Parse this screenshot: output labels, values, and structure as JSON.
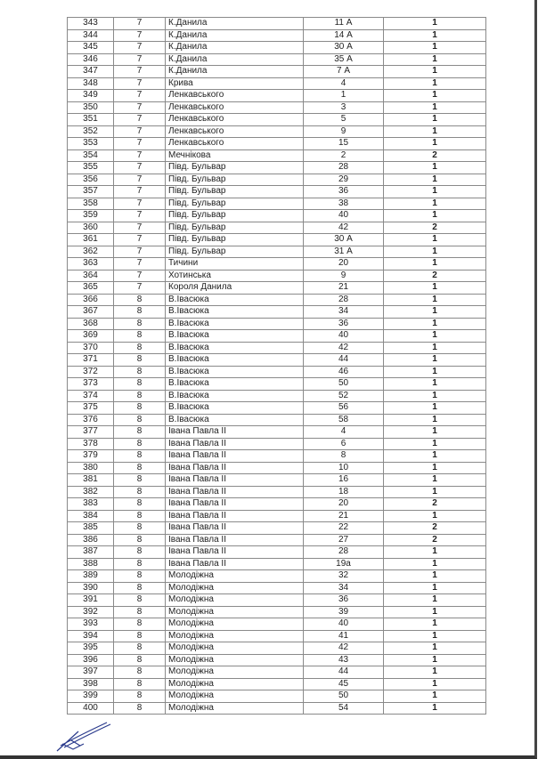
{
  "table": {
    "rows": [
      [
        "343",
        "7",
        "К.Данила",
        "11 А",
        "1"
      ],
      [
        "344",
        "7",
        "К.Данила",
        "14 А",
        "1"
      ],
      [
        "345",
        "7",
        "К.Данила",
        "30 А",
        "1"
      ],
      [
        "346",
        "7",
        "К.Данила",
        "35 А",
        "1"
      ],
      [
        "347",
        "7",
        "К.Данила",
        "7 А",
        "1"
      ],
      [
        "348",
        "7",
        "Крива",
        "4",
        "1"
      ],
      [
        "349",
        "7",
        "Ленкавського",
        "1",
        "1"
      ],
      [
        "350",
        "7",
        "Ленкавського",
        "3",
        "1"
      ],
      [
        "351",
        "7",
        "Ленкавського",
        "5",
        "1"
      ],
      [
        "352",
        "7",
        "Ленкавського",
        "9",
        "1"
      ],
      [
        "353",
        "7",
        "Ленкавського",
        "15",
        "1"
      ],
      [
        "354",
        "7",
        "Мечнікова",
        "2",
        "2"
      ],
      [
        "355",
        "7",
        "Півд. Бульвар",
        "28",
        "1"
      ],
      [
        "356",
        "7",
        "Півд. Бульвар",
        "29",
        "1"
      ],
      [
        "357",
        "7",
        "Півд. Бульвар",
        "36",
        "1"
      ],
      [
        "358",
        "7",
        "Півд. Бульвар",
        "38",
        "1"
      ],
      [
        "359",
        "7",
        "Півд. Бульвар",
        "40",
        "1"
      ],
      [
        "360",
        "7",
        "Півд. Бульвар",
        "42",
        "2"
      ],
      [
        "361",
        "7",
        "Півд. Бульвар",
        "30 А",
        "1"
      ],
      [
        "362",
        "7",
        "Півд. Бульвар",
        "31 А",
        "1"
      ],
      [
        "363",
        "7",
        "Тичини",
        "20",
        "1"
      ],
      [
        "364",
        "7",
        "Хотинська",
        "9",
        "2"
      ],
      [
        "365",
        "7",
        "Короля Данила",
        "21",
        "1"
      ],
      [
        "366",
        "8",
        "В.Івасюка",
        "28",
        "1"
      ],
      [
        "367",
        "8",
        "В.Івасюка",
        "34",
        "1"
      ],
      [
        "368",
        "8",
        "В.Івасюка",
        "36",
        "1"
      ],
      [
        "369",
        "8",
        "В.Івасюка",
        "40",
        "1"
      ],
      [
        "370",
        "8",
        "В.Івасюка",
        "42",
        "1"
      ],
      [
        "371",
        "8",
        "В.Івасюка",
        "44",
        "1"
      ],
      [
        "372",
        "8",
        "В.Івасюка",
        "46",
        "1"
      ],
      [
        "373",
        "8",
        "В.Івасюка",
        "50",
        "1"
      ],
      [
        "374",
        "8",
        "В.Івасюка",
        "52",
        "1"
      ],
      [
        "375",
        "8",
        "В.Івасюка",
        "56",
        "1"
      ],
      [
        "376",
        "8",
        "В.Івасюка",
        "58",
        "1"
      ],
      [
        "377",
        "8",
        "Івана Павла II",
        "4",
        "1"
      ],
      [
        "378",
        "8",
        "Івана Павла II",
        "6",
        "1"
      ],
      [
        "379",
        "8",
        "Івана Павла II",
        "8",
        "1"
      ],
      [
        "380",
        "8",
        "Івана Павла II",
        "10",
        "1"
      ],
      [
        "381",
        "8",
        "Івана Павла II",
        "16",
        "1"
      ],
      [
        "382",
        "8",
        "Івана Павла II",
        "18",
        "1"
      ],
      [
        "383",
        "8",
        "Івана Павла II",
        "20",
        "2"
      ],
      [
        "384",
        "8",
        "Івана Павла II",
        "21",
        "1"
      ],
      [
        "385",
        "8",
        "Івана Павла II",
        "22",
        "2"
      ],
      [
        "386",
        "8",
        "Івана Павла II",
        "27",
        "2"
      ],
      [
        "387",
        "8",
        "Івана Павла II",
        "28",
        "1"
      ],
      [
        "388",
        "8",
        "Івана Павла II",
        "19а",
        "1"
      ],
      [
        "389",
        "8",
        "Молодіжна",
        "32",
        "1"
      ],
      [
        "390",
        "8",
        "Молодіжна",
        "34",
        "1"
      ],
      [
        "391",
        "8",
        "Молодіжна",
        "36",
        "1"
      ],
      [
        "392",
        "8",
        "Молодіжна",
        "39",
        "1"
      ],
      [
        "393",
        "8",
        "Молодіжна",
        "40",
        "1"
      ],
      [
        "394",
        "8",
        "Молодіжна",
        "41",
        "1"
      ],
      [
        "395",
        "8",
        "Молодіжна",
        "42",
        "1"
      ],
      [
        "396",
        "8",
        "Молодіжна",
        "43",
        "1"
      ],
      [
        "397",
        "8",
        "Молодіжна",
        "44",
        "1"
      ],
      [
        "398",
        "8",
        "Молодіжна",
        "45",
        "1"
      ],
      [
        "399",
        "8",
        "Молодіжна",
        "50",
        "1"
      ],
      [
        "400",
        "8",
        "Молодіжна",
        "54",
        "1"
      ]
    ]
  },
  "signature": {
    "icon": "handwritten-signature",
    "color": "#2a3a8c"
  }
}
